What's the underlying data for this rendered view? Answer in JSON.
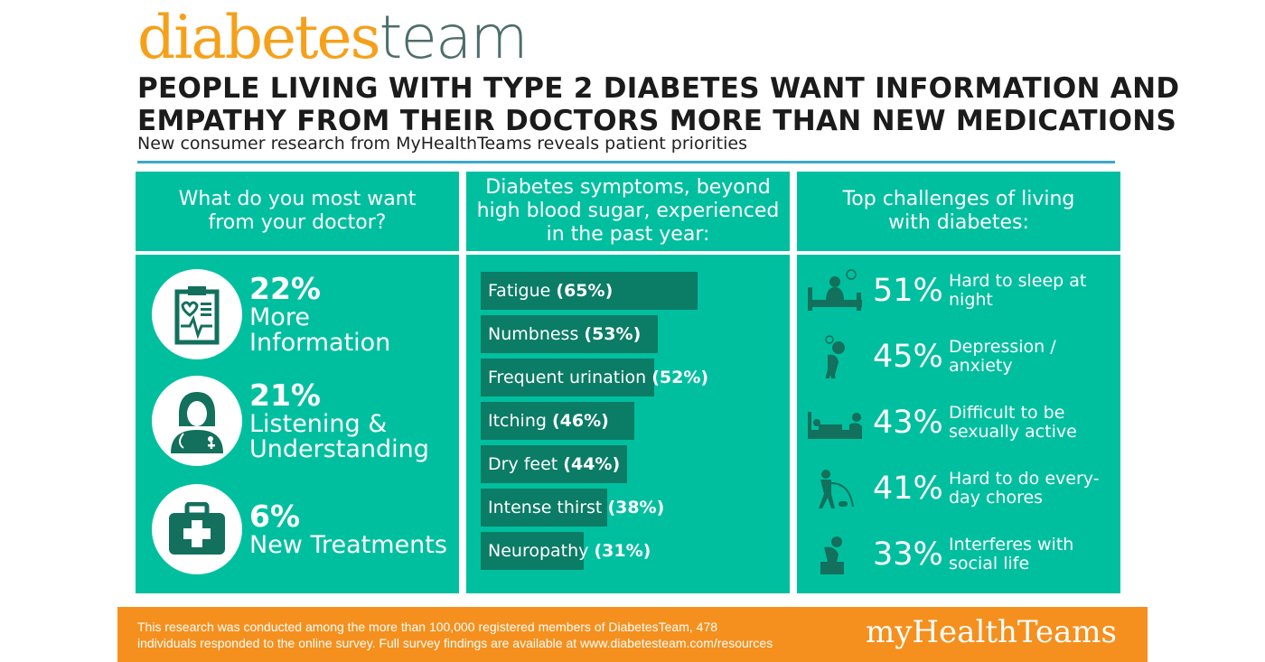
{
  "logo": {
    "part1": "diabetes",
    "part2": "team"
  },
  "header": {
    "title_line1": "PEOPLE LIVING WITH TYPE 2 DIABETES WANT INFORMATION AND",
    "title_line2": "EMPATHY FROM THEIR DOCTORS MORE THAN NEW MEDICATIONS",
    "subtitle": "New consumer research from MyHealthTeams reveals patient priorities"
  },
  "colors": {
    "teal": "#00bf9f",
    "dark_teal": "#0b7c66",
    "orange": "#f5901e",
    "logo_orange": "#f6a01a",
    "rule_blue": "#3ba8cf"
  },
  "want": {
    "heading": "What do you most want from your doctor?",
    "items": [
      {
        "icon": "clipboard-heart-icon",
        "pct": "22%",
        "label": "More Information"
      },
      {
        "icon": "doctor-icon",
        "pct": "21%",
        "label": "Listening & Understanding"
      },
      {
        "icon": "first-aid-kit-icon",
        "pct": "6%",
        "label": "New Treatments"
      }
    ]
  },
  "symptoms": {
    "heading": "Diabetes symptoms, beyond high blood sugar, experienced in the past year:"
  },
  "chart_data": {
    "type": "bar",
    "orientation": "horizontal",
    "title": "Diabetes symptoms, beyond high blood sugar, experienced in the past year:",
    "categories": [
      "Fatigue",
      "Numbness",
      "Frequent urination",
      "Itching",
      "Dry feet",
      "Intense thirst",
      "Neuropathy"
    ],
    "values": [
      65,
      53,
      52,
      46,
      44,
      38,
      31
    ],
    "value_labels": [
      "(65%)",
      "(53%)",
      "(52%)",
      "(46%)",
      "(44%)",
      "(38%)",
      "(31%)"
    ],
    "unit": "%"
  },
  "challenges": {
    "heading": "Top challenges of living with diabetes:",
    "items": [
      {
        "icon": "sleepless-bed-icon",
        "pct": "51%",
        "label": "Hard to sleep at night"
      },
      {
        "icon": "depressed-person-icon",
        "pct": "45%",
        "label": "Depression / anxiety"
      },
      {
        "icon": "bed-couple-icon",
        "pct": "43%",
        "label": "Difficult to be sexually active"
      },
      {
        "icon": "vacuum-chores-icon",
        "pct": "41%",
        "label": "Hard to do every-day chores"
      },
      {
        "icon": "sitting-sad-person-icon",
        "pct": "33%",
        "label": "Interferes with social life"
      }
    ]
  },
  "footer": {
    "note_line1": "This research was conducted among the more than 100,000 registered members of DiabetesTeam, 478",
    "note_line2": "individuals responded to the online survey. Full survey findings are available at www.diabetesteam.com/resources",
    "brand": "myHealthTeams"
  }
}
